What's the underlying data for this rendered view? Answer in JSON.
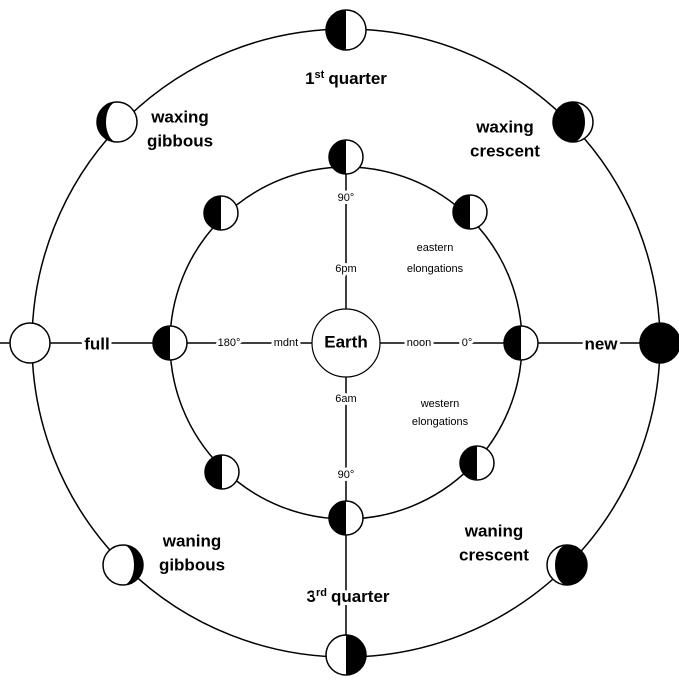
{
  "outer_labels": {
    "first_quarter": {
      "number": "1",
      "suffix": "st",
      "word": "quarter"
    },
    "waxing_gibbous": [
      "waxing",
      "gibbous"
    ],
    "waxing_crescent": [
      "waxing",
      "crescent"
    ],
    "full": "full",
    "new": "new",
    "waning_gibbous": [
      "waning",
      "gibbous"
    ],
    "waning_crescent": [
      "waning",
      "crescent"
    ],
    "third_quarter": {
      "number": "3",
      "suffix": "rd",
      "word": "quarter"
    }
  },
  "center": "Earth",
  "inner_labels": {
    "top_angle": "90°",
    "top_time": "6pm",
    "eastern": [
      "eastern",
      "elongations"
    ],
    "left_angle": "180°",
    "left_time": "mdnt",
    "right_time": "noon",
    "right_angle": "0°",
    "bottom_time": "6am",
    "western": [
      "western",
      "elongations"
    ],
    "bottom_angle": "90°"
  }
}
